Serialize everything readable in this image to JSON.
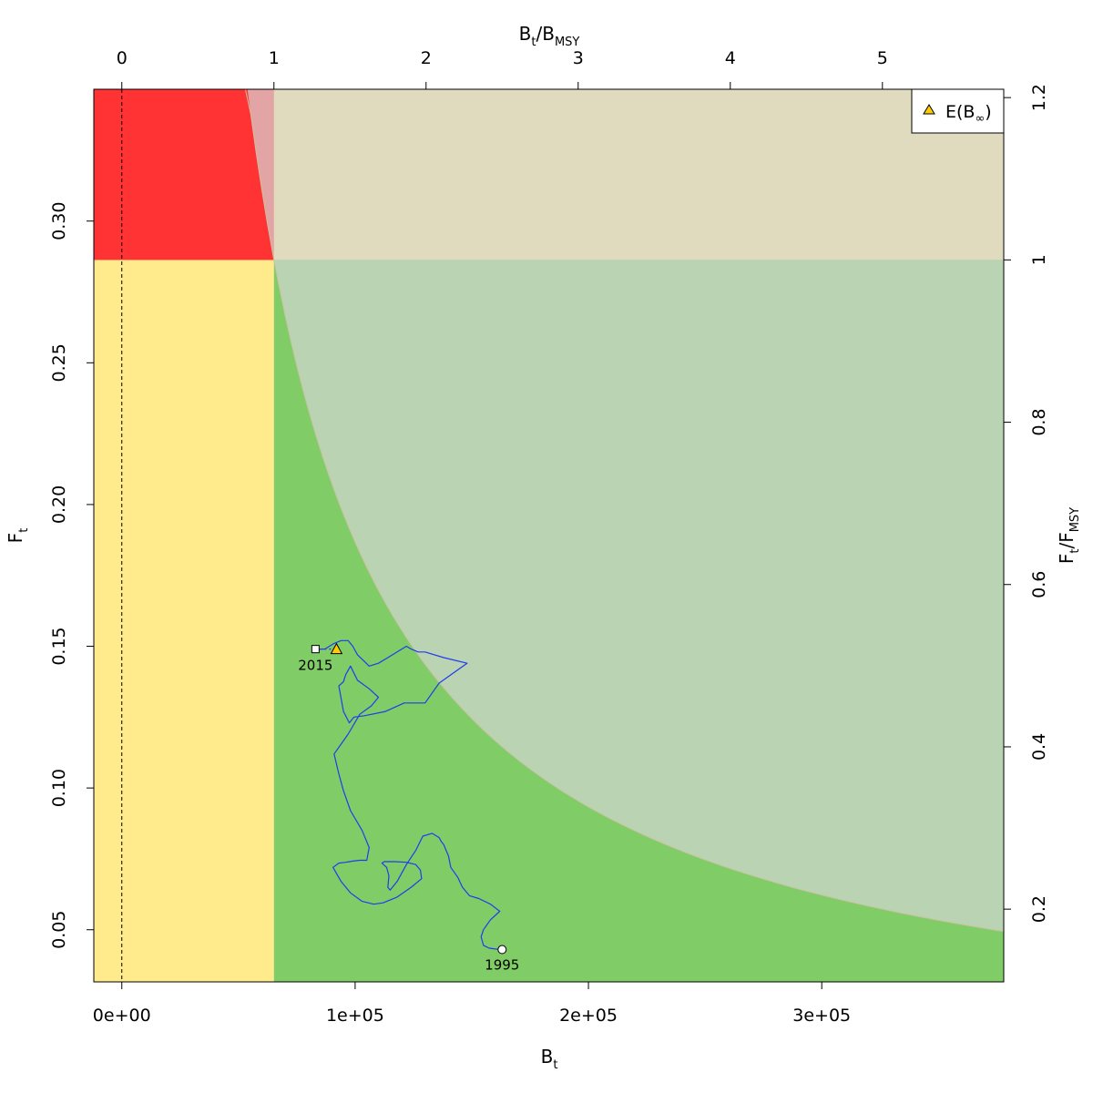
{
  "chart_data": {
    "type": "line",
    "title": "",
    "axes": {
      "bottom": {
        "label": "B",
        "label_sub": "t",
        "range": [
          -12000,
          378000
        ],
        "ticks": [
          0,
          100000,
          200000,
          300000
        ],
        "tick_labels": [
          "0e+00",
          "1e+05",
          "2e+05",
          "3e+05"
        ]
      },
      "top": {
        "label": "B",
        "label_sub": "t",
        "label_mid": "/B",
        "label_sub2": "MSY",
        "ticks": [
          0,
          1,
          2,
          3,
          4,
          5
        ],
        "tick_labels": [
          "0",
          "1",
          "2",
          "3",
          "4",
          "5"
        ]
      },
      "left": {
        "label": "F",
        "label_sub": "t",
        "range": [
          0.0316,
          0.3465
        ],
        "ticks": [
          0.05,
          0.1,
          0.15,
          0.2,
          0.25,
          0.3
        ],
        "tick_labels": [
          "0.05",
          "0.10",
          "0.15",
          "0.20",
          "0.25",
          "0.30"
        ]
      },
      "right": {
        "label": "F",
        "label_sub": "t",
        "label_mid": "/F",
        "label_sub2": "MSY",
        "ticks": [
          0.2,
          0.4,
          0.6,
          0.8,
          1.0,
          1.2
        ],
        "tick_labels": [
          "0.2",
          "0.4",
          "0.6",
          "0.8",
          "1",
          "1.2"
        ]
      }
    },
    "reference_points": {
      "Bmsy": 65200,
      "Fmsy": 0.2863,
      "msy_curve_B": [
        5800,
        65200,
        100000,
        200000,
        300000,
        378000
      ],
      "msy_curve_F": [
        0.2863,
        0.0838,
        0.072,
        0.062,
        0.0585,
        0.057
      ]
    },
    "zones": [
      {
        "name": "overfished-overfishing",
        "color": "#ff3333"
      },
      {
        "name": "recovering",
        "color": "#e2a4a4"
      },
      {
        "name": "above-fmsy",
        "color": "#e0dbbf"
      },
      {
        "name": "below-bmsy",
        "color": "#ffea8c"
      },
      {
        "name": "healthy",
        "color": "#bad3b2"
      },
      {
        "name": "above-msy-curve",
        "color": "#80cc66"
      }
    ],
    "trajectory_color": "#1f3cf0",
    "series": [
      {
        "x": [
          163000,
          160000,
          157500,
          155000,
          154000,
          155000,
          158000,
          162000,
          158000,
          153000,
          149000,
          146000,
          144000,
          141000,
          140000,
          139000,
          138000,
          137000,
          136000,
          133000,
          129000,
          126000,
          122000,
          118000,
          115000,
          114000,
          114500,
          113500,
          111500,
          112500,
          117000,
          122000,
          126000,
          128000,
          128500,
          124000,
          118000,
          112000,
          108000,
          103000,
          98000,
          94000,
          90500,
          93000,
          96000,
          99000,
          102000,
          105000,
          106000,
          103000,
          98000,
          95000,
          93000,
          91000,
          97000,
          102000,
          107000,
          110000,
          106000,
          101000,
          98000,
          96000,
          95000,
          93000,
          95000,
          97500,
          99500,
          104000,
          113000,
          121000,
          130000,
          136000,
          148000,
          138000,
          130000,
          127000,
          124000,
          122000,
          118000,
          114000,
          110000,
          106000,
          103500,
          101000,
          99000,
          97000,
          94000,
          91000,
          87000,
          85000,
          82000
        ],
        "y": [
          0.043,
          0.0432,
          0.0435,
          0.0445,
          0.0475,
          0.05,
          0.0535,
          0.0565,
          0.059,
          0.061,
          0.062,
          0.065,
          0.0685,
          0.072,
          0.076,
          0.078,
          0.08,
          0.081,
          0.0825,
          0.084,
          0.083,
          0.078,
          0.073,
          0.067,
          0.064,
          0.065,
          0.069,
          0.072,
          0.0735,
          0.074,
          0.074,
          0.0738,
          0.073,
          0.071,
          0.068,
          0.065,
          0.0615,
          0.0595,
          0.059,
          0.06,
          0.063,
          0.067,
          0.072,
          0.0735,
          0.0738,
          0.0742,
          0.0745,
          0.0745,
          0.079,
          0.085,
          0.092,
          0.099,
          0.105,
          0.112,
          0.119,
          0.126,
          0.129,
          0.132,
          0.135,
          0.138,
          0.143,
          0.14,
          0.1375,
          0.136,
          0.127,
          0.123,
          0.125,
          0.1255,
          0.127,
          0.13,
          0.13,
          0.137,
          0.144,
          0.146,
          0.148,
          0.148,
          0.149,
          0.15,
          0.148,
          0.146,
          0.144,
          0.143,
          0.145,
          0.147,
          0.15,
          0.152,
          0.152,
          0.151,
          0.149,
          0.149,
          0.149
        ]
      }
    ],
    "points": [
      {
        "label": "1995",
        "x": 163000,
        "y": 0.043,
        "marker": "circle",
        "fill": "#ffffff"
      },
      {
        "label": "2015",
        "x": 83000,
        "y": 0.149,
        "marker": "square",
        "fill": "#ffffff"
      },
      {
        "label": "",
        "x": 92000,
        "y": 0.149,
        "marker": "triangle",
        "fill": "#ffcc00"
      }
    ],
    "projection": {
      "x": [
        83000,
        92000
      ],
      "y": [
        0.149,
        0.149
      ],
      "style": "dotted"
    },
    "b_zero_line": {
      "x": 0,
      "style": "dashed"
    },
    "legend": {
      "position": "top-right",
      "label": "E(B",
      "label_sub": "∞",
      "label_end": ")",
      "marker": "triangle",
      "marker_fill": "#ffcc00"
    },
    "grid": false
  }
}
